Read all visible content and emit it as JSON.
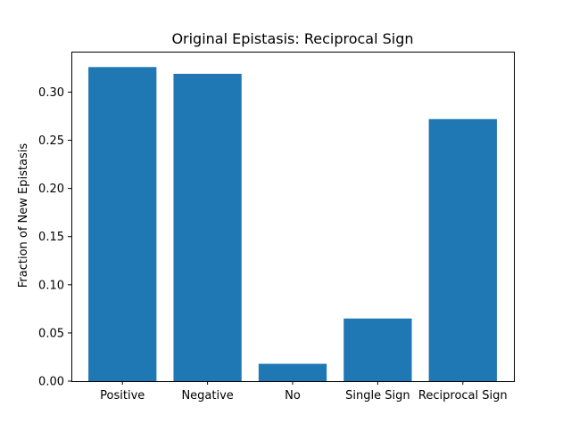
{
  "chart_data": {
    "type": "bar",
    "title": "Original Epistasis: Reciprocal Sign",
    "xlabel": "",
    "ylabel": "Fraction of New Epistasis",
    "categories": [
      "Positive",
      "Negative",
      "No",
      "Single Sign",
      "Reciprocal Sign"
    ],
    "values": [
      0.326,
      0.319,
      0.018,
      0.065,
      0.272
    ],
    "ylim": [
      0,
      0.342
    ],
    "yticks": [
      0.0,
      0.05,
      0.1,
      0.15,
      0.2,
      0.25,
      0.3
    ],
    "ytick_labels": [
      "0.00",
      "0.05",
      "0.10",
      "0.15",
      "0.20",
      "0.25",
      "0.30"
    ],
    "bar_color": "#1f77b4",
    "grid": false,
    "legend": "none"
  }
}
